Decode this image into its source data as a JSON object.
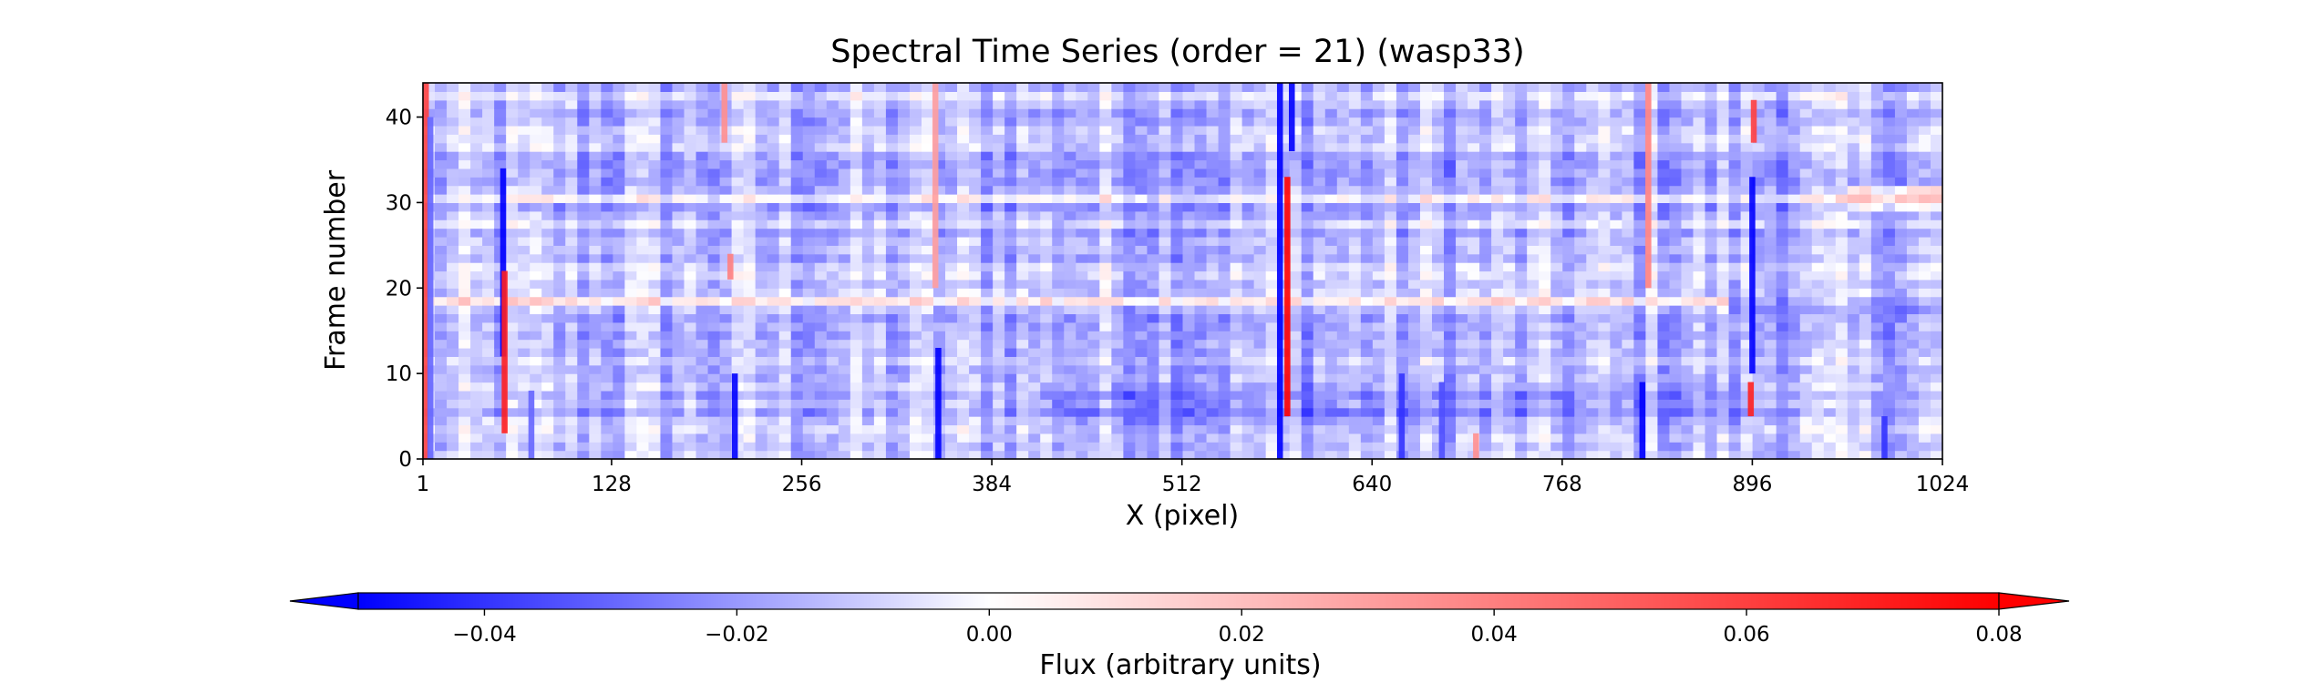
{
  "chart_data": {
    "type": "heatmap",
    "title": "Spectral Time Series (order = 21) (wasp33)",
    "xlabel": "X (pixel)",
    "ylabel": "Frame number",
    "xlim": [
      1,
      1024
    ],
    "ylim": [
      0,
      44
    ],
    "xticks": [
      "1",
      "128",
      "256",
      "384",
      "512",
      "640",
      "768",
      "896",
      "1024"
    ],
    "xtick_values": [
      1,
      128,
      256,
      384,
      512,
      640,
      768,
      896,
      1024
    ],
    "yticks": [
      "0",
      "10",
      "20",
      "30",
      "40"
    ],
    "ytick_values": [
      0,
      10,
      20,
      30,
      40
    ],
    "n_frames": 44,
    "colormap": "bwr",
    "colors": {
      "low": "#0000ff",
      "mid": "#ffffff",
      "high": "#ff0000"
    },
    "color_range": [
      -0.05,
      0.08
    ],
    "colorbar": {
      "label": "Flux (arbitrary units)",
      "orientation": "horizontal",
      "extend": "both",
      "ticks": [
        "−0.04",
        "−0.02",
        "0.00",
        "0.02",
        "0.04",
        "0.06",
        "0.08"
      ],
      "tick_values": [
        -0.04,
        -0.02,
        0.0,
        0.02,
        0.04,
        0.06,
        0.08
      ]
    },
    "baseline_flux": -0.013,
    "vertical_features": [
      {
        "x": 3,
        "flux": 0.06,
        "frames": [
          0,
          44
        ]
      },
      {
        "x": 6,
        "flux": -0.03,
        "frames": [
          0,
          40
        ]
      },
      {
        "x": 55,
        "flux": -0.05,
        "frames": [
          12,
          34
        ]
      },
      {
        "x": 56,
        "flux": 0.07,
        "frames": [
          3,
          22
        ]
      },
      {
        "x": 74,
        "flux": -0.03,
        "frames": [
          0,
          8
        ]
      },
      {
        "x": 204,
        "flux": 0.035,
        "frames": [
          37,
          44
        ]
      },
      {
        "x": 208,
        "flux": 0.04,
        "frames": [
          21,
          24
        ]
      },
      {
        "x": 211,
        "flux": -0.05,
        "frames": [
          0,
          10
        ]
      },
      {
        "x": 346,
        "flux": 0.03,
        "frames": [
          20,
          44
        ]
      },
      {
        "x": 348,
        "flux": -0.05,
        "frames": [
          0,
          13
        ]
      },
      {
        "x": 578,
        "flux": -0.05,
        "frames": [
          0,
          44
        ]
      },
      {
        "x": 583,
        "flux": 0.08,
        "frames": [
          5,
          33
        ]
      },
      {
        "x": 586,
        "flux": -0.05,
        "frames": [
          36,
          44
        ]
      },
      {
        "x": 660,
        "flux": -0.04,
        "frames": [
          0,
          10
        ]
      },
      {
        "x": 687,
        "flux": -0.035,
        "frames": [
          0,
          9
        ]
      },
      {
        "x": 710,
        "flux": 0.035,
        "frames": [
          0,
          3
        ]
      },
      {
        "x": 822,
        "flux": -0.05,
        "frames": [
          0,
          9
        ]
      },
      {
        "x": 826,
        "flux": 0.04,
        "frames": [
          20,
          44
        ]
      },
      {
        "x": 895,
        "flux": 0.07,
        "frames": [
          5,
          9
        ]
      },
      {
        "x": 896,
        "flux": -0.05,
        "frames": [
          10,
          33
        ]
      },
      {
        "x": 897,
        "flux": 0.06,
        "frames": [
          37,
          42
        ]
      },
      {
        "x": 985,
        "flux": -0.04,
        "frames": [
          0,
          5
        ]
      }
    ],
    "horizontal_bands": [
      {
        "frames": [
          18,
          19
        ],
        "x_range": [
          1,
          880
        ],
        "flux": 0.01
      },
      {
        "frames": [
          17,
          19
        ],
        "x_range": [
          880,
          1024
        ],
        "flux": -0.03
      },
      {
        "frames": [
          30,
          31
        ],
        "x_range": [
          1,
          1024
        ],
        "flux": 0.005
      },
      {
        "frames": [
          3,
          9
        ],
        "x_range": [
          420,
          900
        ],
        "flux": -0.025
      },
      {
        "frames": [
          29,
          32
        ],
        "x_range": [
          960,
          1024
        ],
        "flux": 0.02
      }
    ]
  }
}
